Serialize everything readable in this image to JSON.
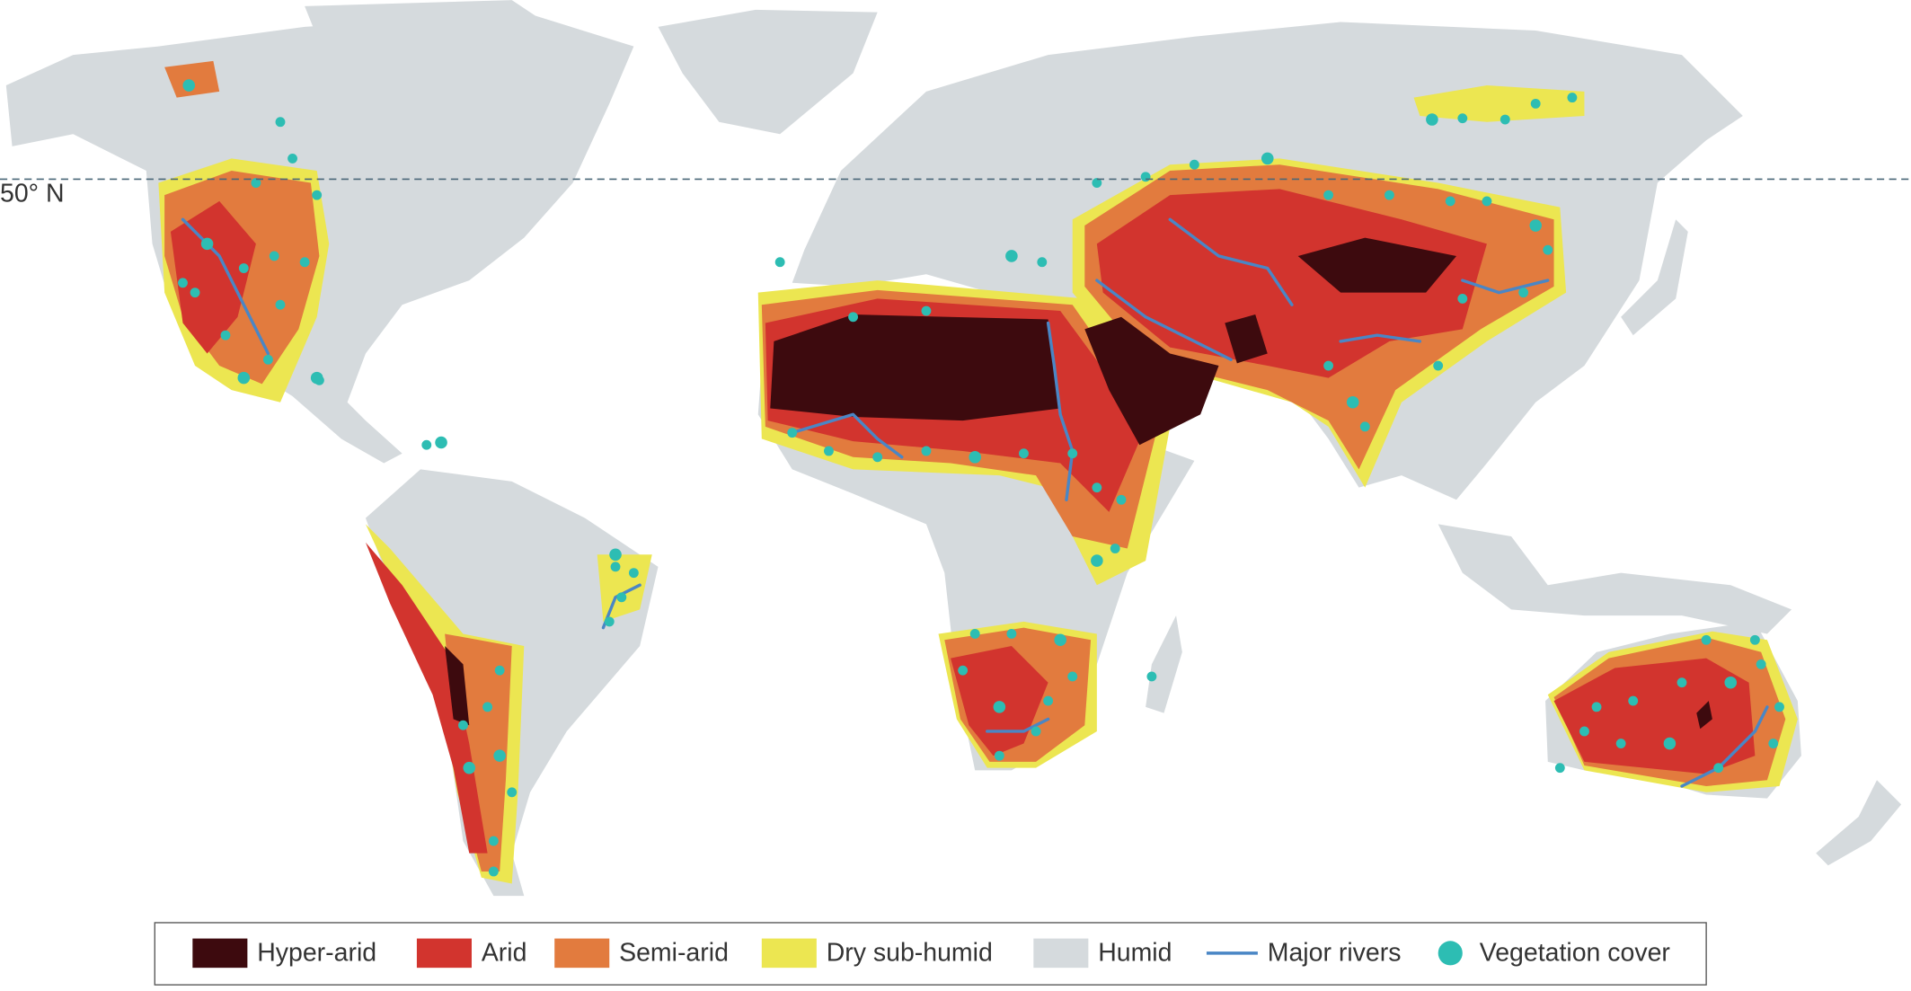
{
  "map_label": "50° N",
  "legend": [
    {
      "label": "Hyper-arid",
      "color": "#3d0a0e",
      "kind": "swatch"
    },
    {
      "label": "Arid",
      "color": "#d2342e",
      "kind": "swatch"
    },
    {
      "label": "Semi-arid",
      "color": "#e27b3e",
      "kind": "swatch"
    },
    {
      "label": "Dry sub-humid",
      "color": "#ece651",
      "kind": "swatch"
    },
    {
      "label": "Humid",
      "color": "#d5dadd",
      "kind": "swatch"
    },
    {
      "label": "Major rivers",
      "color": "#4a86c5",
      "kind": "line"
    },
    {
      "label": "Vegetation cover",
      "color": "#2dbdb3",
      "kind": "dot"
    }
  ]
}
